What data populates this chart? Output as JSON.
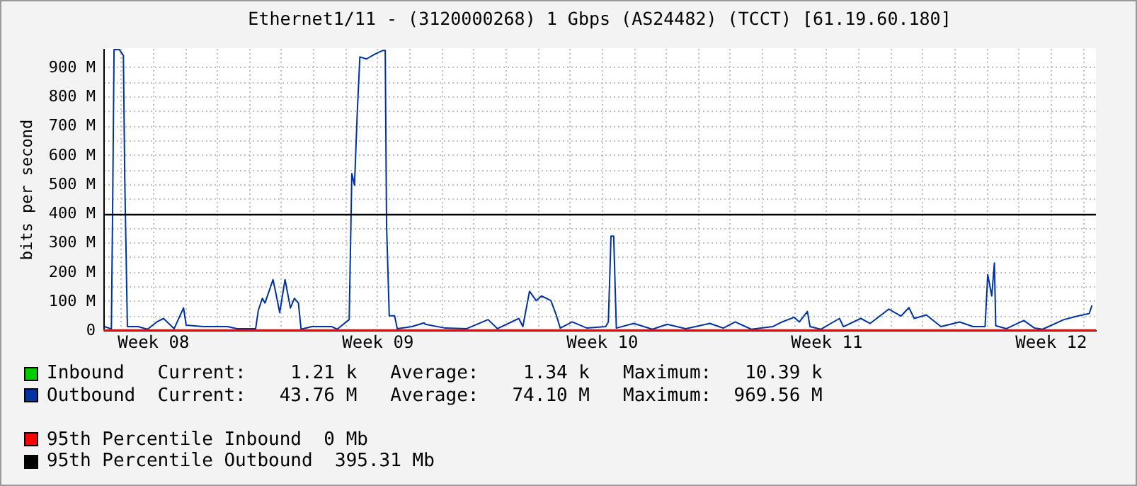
{
  "chart_data": {
    "type": "line",
    "title": "Ethernet1/11 - (3120000268) 1 Gbps (AS24482) (TCCT) [61.19.60.180]",
    "ylabel": "bits per second",
    "xlim": [
      "--02-14T11:00",
      "--03-17T10:00"
    ],
    "xticks": [
      {
        "value": "--02-15",
        "label": null
      },
      {
        "value": "--02-16",
        "label": "Week 08"
      },
      {
        "value": "--02-17",
        "label": null
      },
      {
        "value": "--02-18",
        "label": null
      },
      {
        "value": "--02-19",
        "label": null
      },
      {
        "value": "--02-20",
        "label": null
      },
      {
        "value": "--02-21",
        "label": null
      },
      {
        "value": "--02-22",
        "label": null
      },
      {
        "value": "--02-23",
        "label": "Week 09"
      },
      {
        "value": "--02-24",
        "label": null
      },
      {
        "value": "--02-25",
        "label": null
      },
      {
        "value": "--02-26",
        "label": null
      },
      {
        "value": "--02-27",
        "label": null
      },
      {
        "value": "--02-28",
        "label": null
      },
      {
        "value": "--03-01",
        "label": null
      },
      {
        "value": "--03-02",
        "label": "Week 10"
      },
      {
        "value": "--03-03",
        "label": null
      },
      {
        "value": "--03-04",
        "label": null
      },
      {
        "value": "--03-05",
        "label": null
      },
      {
        "value": "--03-06",
        "label": null
      },
      {
        "value": "--03-07",
        "label": null
      },
      {
        "value": "--03-08",
        "label": null
      },
      {
        "value": "--03-09",
        "label": "Week 11"
      },
      {
        "value": "--03-10",
        "label": null
      },
      {
        "value": "--03-11",
        "label": null
      },
      {
        "value": "--03-12",
        "label": null
      },
      {
        "value": "--03-13",
        "label": null
      },
      {
        "value": "--03-14",
        "label": null
      },
      {
        "value": "--03-15",
        "label": null
      },
      {
        "value": "--03-16",
        "label": "Week 12"
      },
      {
        "value": "--03-17",
        "label": null
      }
    ],
    "ylim": [
      0,
      965
    ],
    "yticks": [
      0,
      {
        "value": 50,
        "label": null
      },
      {
        "value": 100,
        "label": "100 M"
      },
      {
        "value": 150,
        "label": null
      },
      {
        "value": 200,
        "label": "200 M"
      },
      {
        "value": 250,
        "label": null
      },
      {
        "value": 300,
        "label": "300 M"
      },
      {
        "value": 350,
        "label": null
      },
      {
        "value": 400,
        "label": "400 M"
      },
      {
        "value": 450,
        "label": null
      },
      {
        "value": 500,
        "label": "500 M"
      },
      {
        "value": 550,
        "label": null
      },
      {
        "value": 600,
        "label": "600 M"
      },
      {
        "value": 650,
        "label": null
      },
      {
        "value": 700,
        "label": "700 M"
      },
      {
        "value": 750,
        "label": null
      },
      {
        "value": 800,
        "label": "800 M"
      },
      {
        "value": 850,
        "label": null
      },
      {
        "value": 900,
        "label": "900 M"
      }
    ],
    "grid": true,
    "legend": "bottom",
    "marker": "none",
    "line_style": "solid",
    "series": [
      {
        "name": "Inbound",
        "color": "#00cc00"
      },
      {
        "name": "Outbound",
        "color": "#0033a0",
        "x": [
          "--02-14T12:00",
          "--02-14T17:00",
          "--02-14T18:00",
          "--02-14T19:00",
          "--02-14T23:00",
          "--02-15T02:00",
          "--02-15T03:00",
          "--02-15T05:00",
          "--02-15T13:00",
          "--02-15T20:00",
          "--02-16T03:00",
          "--02-16T08:00",
          "--02-16T16:00",
          "--02-16T23:00",
          "--02-17T01:00",
          "--02-17T14:00",
          "--02-18T08:00",
          "--02-18T15:00",
          "--02-19T05:00",
          "--02-19T07:00",
          "--02-19T10:00",
          "--02-19T12:00",
          "--02-19T18:00",
          "--02-19T20:00",
          "--02-19T23:00",
          "--02-20T03:00",
          "--02-20T07:00",
          "--02-20T10:00",
          "--02-20T13:00",
          "--02-20T15:00",
          "--02-20T23:00",
          "--02-21T14:00",
          "--02-21T18:00",
          "--02-22T03:00",
          "--02-22T05:00",
          "--02-22T07:00",
          "--02-22T09:00",
          "--02-22T11:00",
          "--02-22T16:00",
          "--02-22T22:00",
          "--02-23T04:00",
          "--02-23T06:00",
          "--02-23T07:00",
          "--02-23T09:00",
          "--02-23T13:00",
          "--02-23T15:00",
          "--02-24T02:00",
          "--02-24T11:00",
          "--02-24T12:00",
          "--02-25T03:00",
          "--02-25T19:00",
          "--02-26T11:00",
          "--02-26T18:00",
          "--02-27T10:00",
          "--02-27T13:00",
          "--02-27T18:00",
          "--02-27T23:00",
          "--02-28T03:00",
          "--02-28T10:00",
          "--02-28T14:00",
          "--02-28T17:00",
          "--03-01T02:00",
          "--03-01T13:00",
          "--03-02T03:00",
          "--03-02T05:00",
          "--03-02T07:00",
          "--03-02T09:00",
          "--03-02T11:00",
          "--03-03T00:00",
          "--03-03T14:00",
          "--03-04T01:00",
          "--03-04T15:00",
          "--03-05T09:00",
          "--03-05T19:00",
          "--03-06T04:00",
          "--03-06T16:00",
          "--03-07T08:00",
          "--03-07T15:00",
          "--03-08T00:00",
          "--03-08T04:00",
          "--03-08T10:00",
          "--03-08T12:00",
          "--03-08T20:00",
          "--03-09T10:00",
          "--03-09T13:00",
          "--03-10T02:00",
          "--03-10T09:00",
          "--03-10T23:00",
          "--03-11T08:00",
          "--03-11T14:00",
          "--03-11T18:00",
          "--03-12T03:00",
          "--03-12T14:00",
          "--03-13T04:00",
          "--03-13T14:00",
          "--03-13T23:00",
          "--03-14T01:00",
          "--03-14T04:00",
          "--03-14T06:00",
          "--03-14T07:00",
          "--03-14T15:00",
          "--03-15T04:00",
          "--03-15T12:00",
          "--03-15T18:00",
          "--03-16T10:00",
          "--03-16T20:00",
          "--03-17T05:00",
          "--03-17T07:00"
        ],
        "values": [
          12,
          4,
          447,
          960,
          960,
          940,
          520,
          12,
          12,
          3,
          28,
          40,
          5,
          76,
          17,
          12,
          12,
          5,
          5,
          68,
          109,
          93,
          173,
          129,
          60,
          173,
          76,
          109,
          93,
          3,
          12,
          12,
          3,
          36,
          536,
          496,
          738,
          935,
          928,
          944,
          957,
          957,
          359,
          49,
          49,
          5,
          12,
          25,
          20,
          7,
          5,
          36,
          5,
          40,
          12,
          133,
          101,
          117,
          101,
          52,
          7,
          28,
          7,
          12,
          28,
          322,
          322,
          7,
          23,
          3,
          20,
          5,
          23,
          7,
          28,
          3,
          12,
          28,
          44,
          28,
          64,
          12,
          3,
          40,
          12,
          40,
          23,
          72,
          48,
          77,
          40,
          52,
          12,
          28,
          12,
          12,
          190,
          117,
          230,
          15,
          5,
          33,
          7,
          3,
          36,
          48,
          57,
          85
        ]
      }
    ],
    "ref_lines": [
      {
        "axis": "y",
        "value": 0,
        "label": "95th Percentile Inbound  0 Mb",
        "color": "#ff0000"
      },
      {
        "axis": "y",
        "value": 395.31,
        "label": "95th Percentile Outbound  395.31 Mb",
        "color": "#000000"
      }
    ],
    "annotations": [
      "Current:    1.21 k   Average:    1.34 k   Maximum:   10.39 k",
      "Current:   43.76 M   Average:   74.10 M   Maximum:  969.56 M"
    ]
  }
}
